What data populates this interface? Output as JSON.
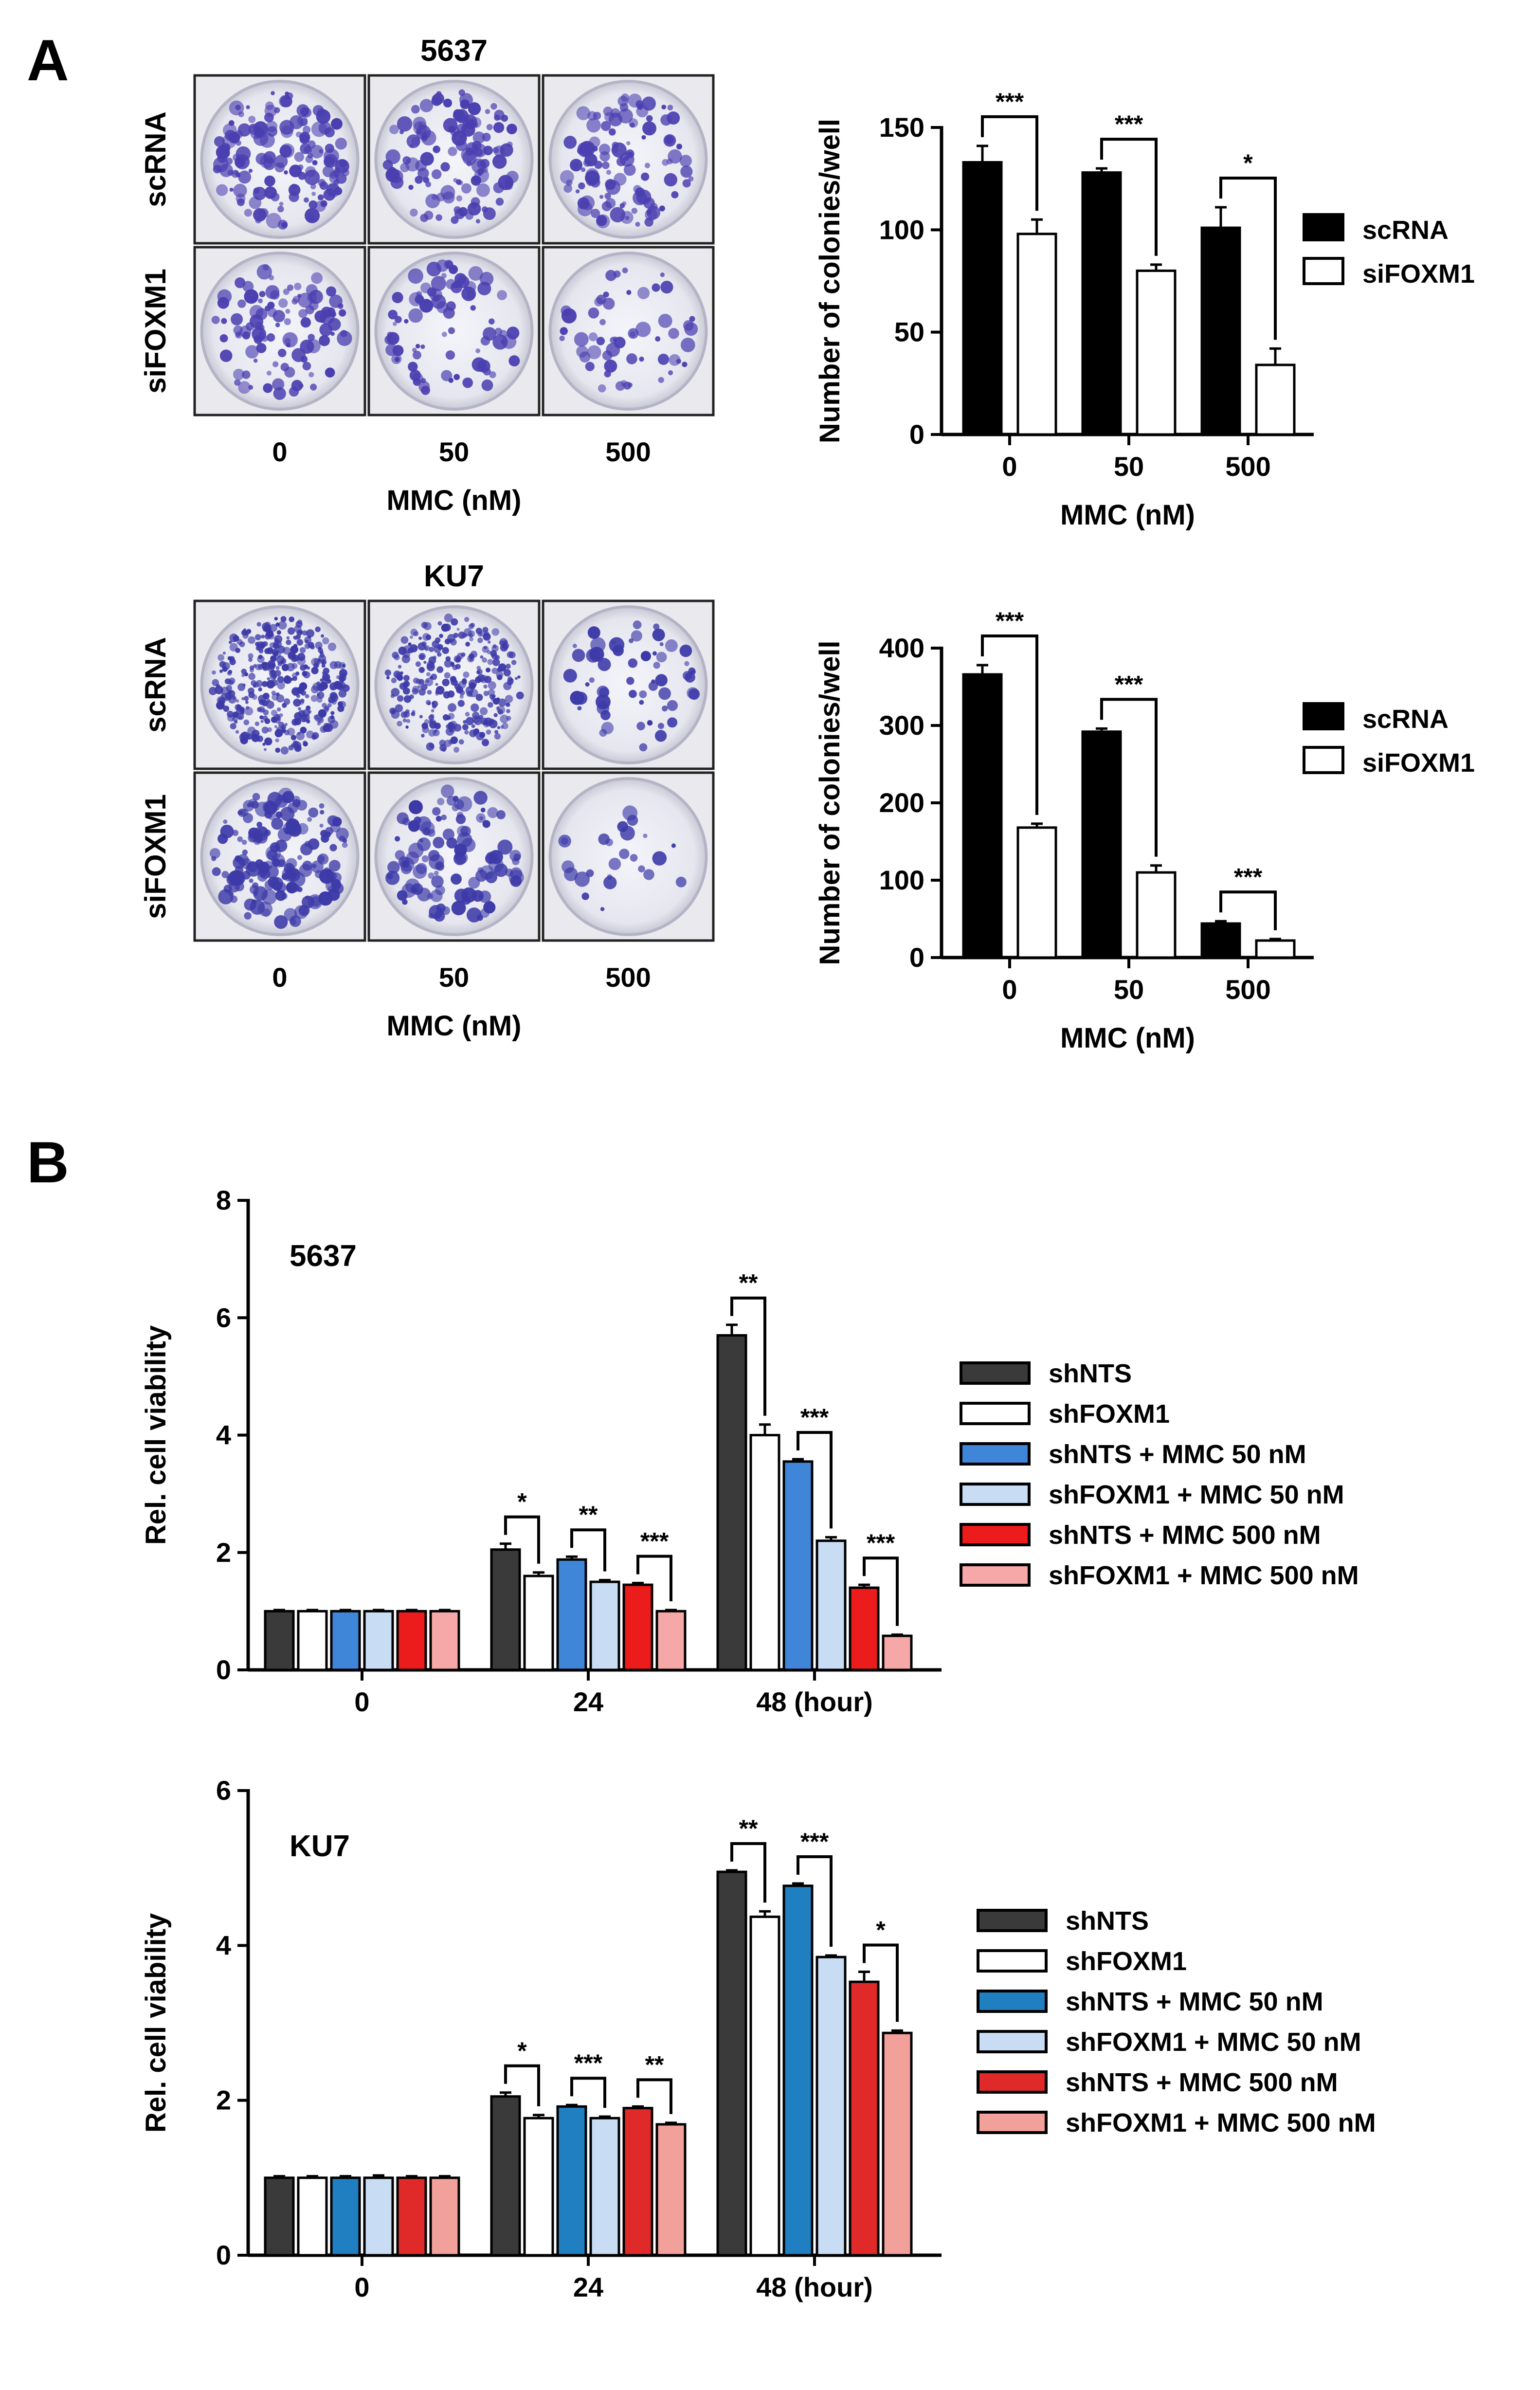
{
  "panels": [
    {
      "letter": "A"
    },
    {
      "letter": "B"
    }
  ],
  "colony_images": [
    {
      "title": "5637",
      "rows": [
        "scRNA",
        "siFOXM1"
      ],
      "cols": [
        "0",
        "50",
        "500"
      ],
      "xlabel": "MMC (nM)",
      "density": [
        [
          150,
          130,
          110
        ],
        [
          105,
          80,
          55
        ]
      ],
      "dot_color": "#4a3fb0"
    },
    {
      "title": "KU7",
      "rows": [
        "scRNA",
        "siFOXM1"
      ],
      "cols": [
        "0",
        "50",
        "500"
      ],
      "xlabel": "MMC (nM)",
      "density": [
        [
          380,
          300,
          60
        ],
        [
          170,
          110,
          25
        ]
      ],
      "dot_color": "#3d3aa8"
    }
  ],
  "chart_data": [
    {
      "type": "bar",
      "title": "",
      "categories": [
        "0",
        "50",
        "500"
      ],
      "xlabel": "MMC (nM)",
      "ylabel": "Number of colonies/well",
      "ylim": [
        0,
        150
      ],
      "yticks": [
        0,
        50,
        100,
        150
      ],
      "series": [
        {
          "name": "scRNA",
          "values": [
            133,
            128,
            101
          ],
          "errors": [
            8,
            2,
            10
          ],
          "color": "#000000"
        },
        {
          "name": "siFOXM1",
          "values": [
            98,
            80,
            34
          ],
          "errors": [
            7,
            3,
            8
          ],
          "color": "#ffffff"
        }
      ],
      "significance": [
        {
          "group": 0,
          "from": 0,
          "to": 1,
          "label": "***"
        },
        {
          "group": 1,
          "from": 0,
          "to": 1,
          "label": "***"
        },
        {
          "group": 2,
          "from": 0,
          "to": 1,
          "label": "*"
        }
      ],
      "legend": "right"
    },
    {
      "type": "bar",
      "title": "",
      "categories": [
        "0",
        "50",
        "500"
      ],
      "xlabel": "MMC (nM)",
      "ylabel": "Number of colonies/well",
      "ylim": [
        0,
        400
      ],
      "yticks": [
        0,
        100,
        200,
        300,
        400
      ],
      "series": [
        {
          "name": "scRNA",
          "values": [
            366,
            292,
            44
          ],
          "errors": [
            12,
            4,
            3
          ],
          "color": "#000000"
        },
        {
          "name": "siFOXM1",
          "values": [
            168,
            110,
            22
          ],
          "errors": [
            5,
            9,
            2
          ],
          "color": "#ffffff"
        }
      ],
      "significance": [
        {
          "group": 0,
          "from": 0,
          "to": 1,
          "label": "***"
        },
        {
          "group": 1,
          "from": 0,
          "to": 1,
          "label": "***"
        },
        {
          "group": 2,
          "from": 0,
          "to": 1,
          "label": "***"
        }
      ],
      "legend": "right"
    },
    {
      "type": "bar",
      "title": "5637",
      "categories": [
        "0",
        "24",
        "48 (hour)"
      ],
      "xlabel": "",
      "ylabel": "Rel. cell viability",
      "ylim": [
        0,
        8
      ],
      "yticks": [
        0,
        2,
        4,
        6,
        8
      ],
      "series": [
        {
          "name": "shNTS",
          "values": [
            1.0,
            2.05,
            5.7
          ],
          "errors": [
            0.02,
            0.1,
            0.18
          ],
          "color": "#3a3a3a"
        },
        {
          "name": "shFOXM1",
          "values": [
            1.0,
            1.6,
            4.0
          ],
          "errors": [
            0.02,
            0.06,
            0.18
          ],
          "color": "#ffffff"
        },
        {
          "name": "shNTS + MMC 50 nM",
          "values": [
            1.0,
            1.88,
            3.55
          ],
          "errors": [
            0.02,
            0.05,
            0.04
          ],
          "color": "#3f86d8"
        },
        {
          "name": "shFOXM1 + MMC 50 nM",
          "values": [
            1.0,
            1.5,
            2.2
          ],
          "errors": [
            0.02,
            0.03,
            0.06
          ],
          "color": "#c8dcf4"
        },
        {
          "name": "shNTS + MMC 500 nM",
          "values": [
            1.0,
            1.45,
            1.4
          ],
          "errors": [
            0.02,
            0.03,
            0.05
          ],
          "color": "#ec1c1c"
        },
        {
          "name": "shFOXM1 + MMC 500 nM",
          "values": [
            1.0,
            1.0,
            0.58
          ],
          "errors": [
            0.02,
            0.02,
            0.02
          ],
          "color": "#f6a8a8"
        }
      ],
      "significance": [
        {
          "group": 1,
          "from": 0,
          "to": 1,
          "label": "*"
        },
        {
          "group": 1,
          "from": 2,
          "to": 3,
          "label": "**"
        },
        {
          "group": 1,
          "from": 4,
          "to": 5,
          "label": "***"
        },
        {
          "group": 2,
          "from": 0,
          "to": 1,
          "label": "**"
        },
        {
          "group": 2,
          "from": 2,
          "to": 3,
          "label": "***"
        },
        {
          "group": 2,
          "from": 4,
          "to": 5,
          "label": "***"
        }
      ],
      "legend": "right"
    },
    {
      "type": "bar",
      "title": "KU7",
      "categories": [
        "0",
        "24",
        "48 (hour)"
      ],
      "xlabel": "",
      "ylabel": "Rel. cell viability",
      "ylim": [
        0,
        6
      ],
      "yticks": [
        0,
        2,
        4,
        6
      ],
      "series": [
        {
          "name": "shNTS",
          "values": [
            1.0,
            2.05,
            4.95
          ],
          "errors": [
            0.02,
            0.05,
            0.02
          ],
          "color": "#3a3a3a"
        },
        {
          "name": "shFOXM1",
          "values": [
            1.0,
            1.77,
            4.37
          ],
          "errors": [
            0.02,
            0.04,
            0.07
          ],
          "color": "#ffffff"
        },
        {
          "name": "shNTS + MMC 50 nM",
          "values": [
            1.0,
            1.92,
            4.77
          ],
          "errors": [
            0.02,
            0.02,
            0.03
          ],
          "color": "#1f7fc0"
        },
        {
          "name": "shFOXM1 + MMC 50 nM",
          "values": [
            1.0,
            1.77,
            3.85
          ],
          "errors": [
            0.03,
            0.02,
            0.02
          ],
          "color": "#c8dcf4"
        },
        {
          "name": "shNTS + MMC 500 nM",
          "values": [
            1.0,
            1.9,
            3.53
          ],
          "errors": [
            0.02,
            0.02,
            0.13
          ],
          "color": "#e02a2a"
        },
        {
          "name": "shFOXM1 + MMC 500 nM",
          "values": [
            1.0,
            1.69,
            2.87
          ],
          "errors": [
            0.02,
            0.02,
            0.03
          ],
          "color": "#f2a09a"
        }
      ],
      "significance": [
        {
          "group": 1,
          "from": 0,
          "to": 1,
          "label": "*"
        },
        {
          "group": 1,
          "from": 2,
          "to": 3,
          "label": "***"
        },
        {
          "group": 1,
          "from": 4,
          "to": 5,
          "label": "**"
        },
        {
          "group": 2,
          "from": 0,
          "to": 1,
          "label": "**"
        },
        {
          "group": 2,
          "from": 2,
          "to": 3,
          "label": "***"
        },
        {
          "group": 2,
          "from": 4,
          "to": 5,
          "label": "*"
        }
      ],
      "legend": "right"
    }
  ]
}
